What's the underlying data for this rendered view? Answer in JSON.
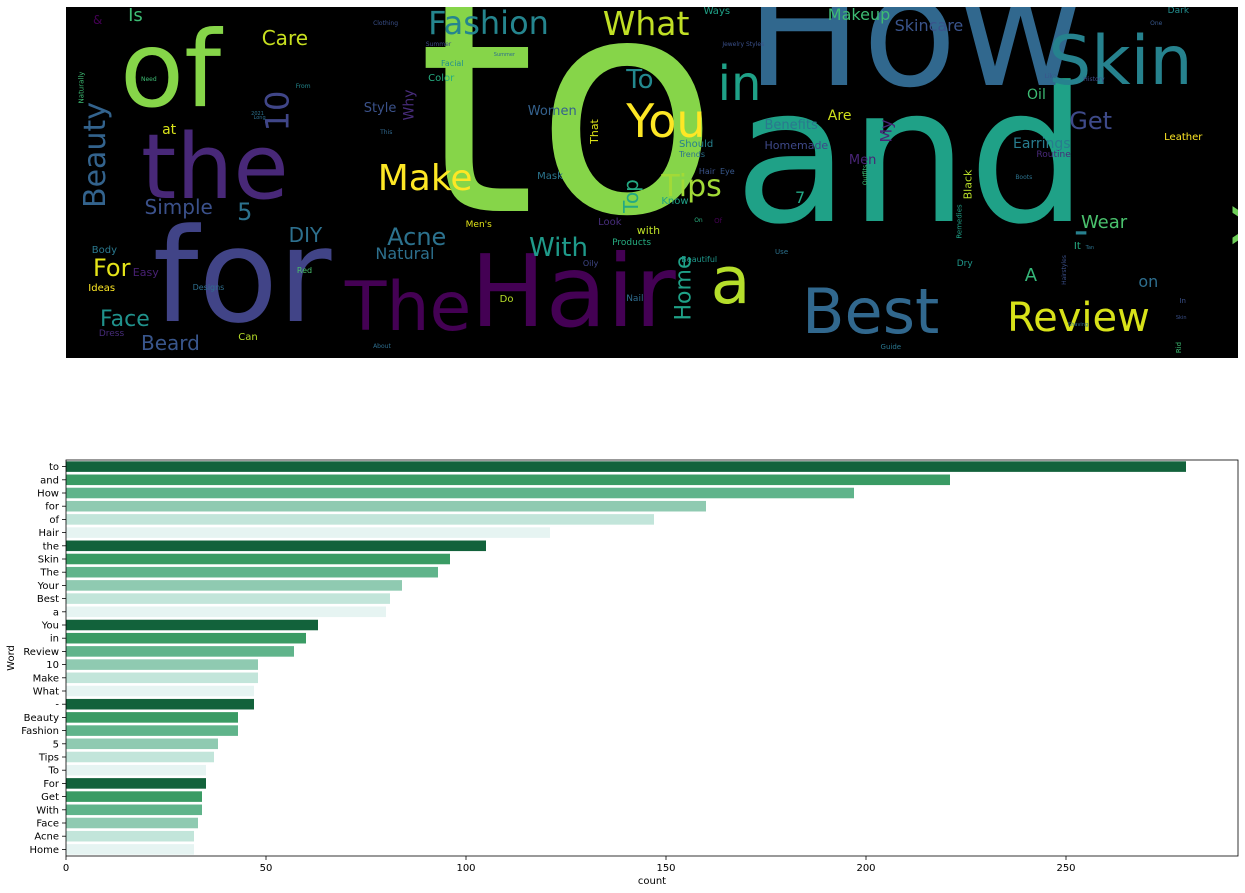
{
  "chart_data": [
    {
      "type": "wordcloud",
      "background": "#000000",
      "words": [
        {
          "text": "to",
          "color": "#86d549",
          "x": 0.3,
          "y": -0.14,
          "size": 300,
          "rot": 0
        },
        {
          "text": "and",
          "color": "#1fa187",
          "x": 0.57,
          "y": 0.16,
          "size": 188,
          "rot": 0
        },
        {
          "text": "How",
          "color": "#31688e",
          "x": 0.58,
          "y": -0.15,
          "size": 155,
          "rot": 0
        },
        {
          "text": "for",
          "color": "#414487",
          "x": 0.074,
          "y": 0.58,
          "size": 130,
          "rot": 0
        },
        {
          "text": "of",
          "color": "#86d549",
          "x": 0.046,
          "y": 0.03,
          "size": 105,
          "rot": 0
        },
        {
          "text": "Hair",
          "color": "#440154",
          "x": 0.345,
          "y": 0.67,
          "size": 100,
          "rot": 0
        },
        {
          "text": "the",
          "color": "#482878",
          "x": 0.064,
          "y": 0.33,
          "size": 90,
          "rot": 0
        },
        {
          "text": "Skin",
          "color": "#26828e",
          "x": 0.838,
          "y": 0.06,
          "size": 68,
          "rot": 0
        },
        {
          "text": "The",
          "color": "#440154",
          "x": 0.238,
          "y": 0.76,
          "size": 68,
          "rot": 0
        },
        {
          "text": "Your",
          "color": "#6ece58",
          "x": 0.96,
          "y": 0.4,
          "size": 62,
          "rot": -90
        },
        {
          "text": "Best",
          "color": "#31688e",
          "x": 0.628,
          "y": 0.78,
          "size": 62,
          "rot": 0
        },
        {
          "text": "a",
          "color": "#b5de2b",
          "x": 0.55,
          "y": 0.69,
          "size": 65,
          "rot": 0
        },
        {
          "text": "You",
          "color": "#fde725",
          "x": 0.478,
          "y": 0.26,
          "size": 46,
          "rot": 0
        },
        {
          "text": "in",
          "color": "#1fa187",
          "x": 0.556,
          "y": 0.15,
          "size": 48,
          "rot": 0
        },
        {
          "text": "Review",
          "color": "#d8e219",
          "x": 0.803,
          "y": 0.83,
          "size": 40,
          "rot": 0
        },
        {
          "text": "10",
          "color": "#404688",
          "x": 0.163,
          "y": 0.25,
          "size": 32,
          "rot": -90
        },
        {
          "text": "Make",
          "color": "#fde725",
          "x": 0.266,
          "y": 0.44,
          "size": 36,
          "rot": 0
        },
        {
          "text": "What",
          "color": "#c0df25",
          "x": 0.458,
          "y": 0.0,
          "size": 33,
          "rot": 0
        },
        {
          "text": "-",
          "color": "#27808e",
          "x": 0.86,
          "y": 0.58,
          "size": 40,
          "rot": 0
        },
        {
          "text": "Beauty",
          "color": "#33638d",
          "x": -0.02,
          "y": 0.38,
          "size": 30,
          "rot": -90
        },
        {
          "text": "Fashion",
          "color": "#25858e",
          "x": 0.309,
          "y": 0.0,
          "size": 32,
          "rot": 0
        },
        {
          "text": "5",
          "color": "#2c728e",
          "x": 0.146,
          "y": 0.55,
          "size": 24,
          "rot": 0
        },
        {
          "text": "Tips",
          "color": "#a2da37",
          "x": 0.508,
          "y": 0.47,
          "size": 30,
          "rot": 0
        },
        {
          "text": "To",
          "color": "#23888e",
          "x": 0.478,
          "y": 0.17,
          "size": 26,
          "rot": 0
        },
        {
          "text": "For",
          "color": "#e5e419",
          "x": 0.023,
          "y": 0.71,
          "size": 24,
          "rot": 0
        },
        {
          "text": "Get",
          "color": "#3e4a89",
          "x": 0.856,
          "y": 0.29,
          "size": 24,
          "rot": 0
        },
        {
          "text": "With",
          "color": "#1f9a8a",
          "x": 0.395,
          "y": 0.65,
          "size": 26,
          "rot": 0
        },
        {
          "text": "Face",
          "color": "#20928c",
          "x": 0.029,
          "y": 0.86,
          "size": 22,
          "rot": 0
        },
        {
          "text": "Acne",
          "color": "#2c728e",
          "x": 0.274,
          "y": 0.62,
          "size": 24,
          "rot": 0
        },
        {
          "text": "Home",
          "color": "#1fa187",
          "x": 0.5,
          "y": 0.77,
          "size": 22,
          "rot": -90
        },
        {
          "text": "Care",
          "color": "#c8e020",
          "x": 0.167,
          "y": 0.06,
          "size": 20,
          "rot": 0
        },
        {
          "text": "Makeup",
          "color": "#3dbc74",
          "x": 0.65,
          "y": 0.0,
          "size": 16,
          "rot": 0
        },
        {
          "text": "Skincare",
          "color": "#3a548c",
          "x": 0.707,
          "y": 0.03,
          "size": 16,
          "rot": 0
        },
        {
          "text": "Simple",
          "color": "#3b518b",
          "x": 0.067,
          "y": 0.54,
          "size": 20,
          "rot": 0
        },
        {
          "text": "DIY",
          "color": "#2d708e",
          "x": 0.19,
          "y": 0.62,
          "size": 20,
          "rot": 0
        },
        {
          "text": "Beard",
          "color": "#39568c",
          "x": 0.064,
          "y": 0.93,
          "size": 20,
          "rot": 0
        },
        {
          "text": "Natural",
          "color": "#2d708e",
          "x": 0.264,
          "y": 0.68,
          "size": 16,
          "rot": 0
        },
        {
          "text": "Top",
          "color": "#23a983",
          "x": 0.468,
          "y": 0.51,
          "size": 20,
          "rot": -90
        },
        {
          "text": "Wear",
          "color": "#4ac16d",
          "x": 0.866,
          "y": 0.59,
          "size": 18,
          "rot": 0
        },
        {
          "text": "A",
          "color": "#35b779",
          "x": 0.818,
          "y": 0.74,
          "size": 18,
          "rot": 0
        },
        {
          "text": "on",
          "color": "#2e6e8e",
          "x": 0.915,
          "y": 0.76,
          "size": 16,
          "rot": 0
        },
        {
          "text": "Is",
          "color": "#3dbc74",
          "x": 0.053,
          "y": 0.0,
          "size": 18,
          "rot": 0
        },
        {
          "text": "Oil",
          "color": "#3dbc74",
          "x": 0.82,
          "y": 0.23,
          "size": 14,
          "rot": 0
        },
        {
          "text": "Earrings",
          "color": "#287c8e",
          "x": 0.808,
          "y": 0.37,
          "size": 14,
          "rot": 0
        },
        {
          "text": "Benefits",
          "color": "#2a788e",
          "x": 0.596,
          "y": 0.32,
          "size": 13,
          "rot": 0
        },
        {
          "text": "Are",
          "color": "#d0e11c",
          "x": 0.65,
          "y": 0.29,
          "size": 14,
          "rot": 0
        },
        {
          "text": "My",
          "color": "#482677",
          "x": 0.69,
          "y": 0.33,
          "size": 16,
          "rot": -90
        },
        {
          "text": "Why",
          "color": "#472c7a",
          "x": 0.28,
          "y": 0.26,
          "size": 14,
          "rot": -90
        },
        {
          "text": "Style",
          "color": "#3b528b",
          "x": 0.254,
          "y": 0.27,
          "size": 13,
          "rot": 0
        },
        {
          "text": "Women",
          "color": "#34618d",
          "x": 0.394,
          "y": 0.28,
          "size": 13,
          "rot": 0
        },
        {
          "text": "Men",
          "color": "#482475",
          "x": 0.668,
          "y": 0.42,
          "size": 13,
          "rot": 0
        },
        {
          "text": "Homemade",
          "color": "#3e4989",
          "x": 0.596,
          "y": 0.38,
          "size": 11,
          "rot": 0
        },
        {
          "text": "Routine",
          "color": "#482979",
          "x": 0.828,
          "y": 0.41,
          "size": 9,
          "rot": 0
        },
        {
          "text": "Black",
          "color": "#b8de29",
          "x": 0.757,
          "y": 0.49,
          "size": 11,
          "rot": -90
        },
        {
          "text": "7",
          "color": "#22a785",
          "x": 0.622,
          "y": 0.52,
          "size": 16,
          "rot": 0
        },
        {
          "text": "Leather",
          "color": "#fde725",
          "x": 0.937,
          "y": 0.36,
          "size": 10,
          "rot": 0
        },
        {
          "text": "Dark",
          "color": "#228d8d",
          "x": 0.94,
          "y": 0.0,
          "size": 9,
          "rot": 0
        },
        {
          "text": "Ways",
          "color": "#1fa187",
          "x": 0.544,
          "y": 0.0,
          "size": 10,
          "rot": 0
        },
        {
          "text": "Color",
          "color": "#26ad81",
          "x": 0.309,
          "y": 0.19,
          "size": 10,
          "rot": 0
        },
        {
          "text": "Facial",
          "color": "#21908d",
          "x": 0.32,
          "y": 0.15,
          "size": 8,
          "rot": 0
        },
        {
          "text": "at",
          "color": "#d8e219",
          "x": 0.082,
          "y": 0.33,
          "size": 14,
          "rot": 0
        },
        {
          "text": "That",
          "color": "#dde318",
          "x": 0.44,
          "y": 0.34,
          "size": 11,
          "rot": -90
        },
        {
          "text": "Should",
          "color": "#27808e",
          "x": 0.523,
          "y": 0.38,
          "size": 10,
          "rot": 0
        },
        {
          "text": "Know",
          "color": "#1fa187",
          "x": 0.508,
          "y": 0.54,
          "size": 10,
          "rot": 0
        },
        {
          "text": "Trends",
          "color": "#2c728e",
          "x": 0.523,
          "y": 0.41,
          "size": 8,
          "rot": 0
        },
        {
          "text": "Eye",
          "color": "#38588c",
          "x": 0.558,
          "y": 0.46,
          "size": 8,
          "rot": 0
        },
        {
          "text": "Hair",
          "color": "#3a538b",
          "x": 0.54,
          "y": 0.46,
          "size": 8,
          "rot": 0
        },
        {
          "text": "Mask",
          "color": "#2b758e",
          "x": 0.402,
          "y": 0.47,
          "size": 10,
          "rot": 0
        },
        {
          "text": "Look",
          "color": "#472d7b",
          "x": 0.454,
          "y": 0.6,
          "size": 10,
          "rot": 0
        },
        {
          "text": "with",
          "color": "#bddf26",
          "x": 0.487,
          "y": 0.62,
          "size": 11,
          "rot": 0
        },
        {
          "text": "Products",
          "color": "#26ad81",
          "x": 0.466,
          "y": 0.66,
          "size": 9,
          "rot": 0
        },
        {
          "text": "Beautiful",
          "color": "#1f988b",
          "x": 0.525,
          "y": 0.71,
          "size": 8,
          "rot": 0
        },
        {
          "text": "Men's",
          "color": "#e2e418",
          "x": 0.341,
          "y": 0.61,
          "size": 9,
          "rot": 0
        },
        {
          "text": "Oily",
          "color": "#3f4788",
          "x": 0.441,
          "y": 0.72,
          "size": 8,
          "rot": 0
        },
        {
          "text": "Nail",
          "color": "#2f6b8e",
          "x": 0.478,
          "y": 0.82,
          "size": 9,
          "rot": 0
        },
        {
          "text": "Do",
          "color": "#b8de29",
          "x": 0.37,
          "y": 0.82,
          "size": 10,
          "rot": 0
        },
        {
          "text": "Easy",
          "color": "#482173",
          "x": 0.057,
          "y": 0.74,
          "size": 11,
          "rot": 0
        },
        {
          "text": "Body",
          "color": "#2a788e",
          "x": 0.022,
          "y": 0.68,
          "size": 10,
          "rot": 0
        },
        {
          "text": "Ideas",
          "color": "#fde725",
          "x": 0.019,
          "y": 0.79,
          "size": 10,
          "rot": 0
        },
        {
          "text": "Red",
          "color": "#4ac16d",
          "x": 0.197,
          "y": 0.74,
          "size": 8,
          "rot": 0
        },
        {
          "text": "Designs",
          "color": "#2e6e8e",
          "x": 0.108,
          "y": 0.79,
          "size": 8,
          "rot": 0
        },
        {
          "text": "Dress",
          "color": "#472c7a",
          "x": 0.028,
          "y": 0.92,
          "size": 9,
          "rot": 0
        },
        {
          "text": "Can",
          "color": "#b8de29",
          "x": 0.147,
          "y": 0.93,
          "size": 10,
          "rot": 0
        },
        {
          "text": "Dry",
          "color": "#1f988b",
          "x": 0.76,
          "y": 0.72,
          "size": 9,
          "rot": 0
        },
        {
          "text": "It",
          "color": "#25ab82",
          "x": 0.86,
          "y": 0.67,
          "size": 10,
          "rot": 0
        },
        {
          "text": "Use",
          "color": "#2c728e",
          "x": 0.605,
          "y": 0.69,
          "size": 7,
          "rot": 0
        },
        {
          "text": "Remedies",
          "color": "#1fa187",
          "x": 0.748,
          "y": 0.6,
          "size": 7,
          "rot": -90
        },
        {
          "text": "Outfits",
          "color": "#3dbc74",
          "x": 0.674,
          "y": 0.47,
          "size": 6,
          "rot": -90
        },
        {
          "text": "On",
          "color": "#29af7f",
          "x": 0.536,
          "y": 0.6,
          "size": 6,
          "rot": 0
        },
        {
          "text": "Of",
          "color": "#440154",
          "x": 0.553,
          "y": 0.6,
          "size": 7,
          "rot": 0
        },
        {
          "text": "Guide",
          "color": "#2a768e",
          "x": 0.695,
          "y": 0.96,
          "size": 7,
          "rot": 0
        },
        {
          "text": "In",
          "color": "#3b518b",
          "x": 0.95,
          "y": 0.83,
          "size": 7,
          "rot": 0
        },
        {
          "text": "Rid",
          "color": "#3dbc74",
          "x": 0.945,
          "y": 0.96,
          "size": 7,
          "rot": -90
        },
        {
          "text": "Hairstyles",
          "color": "#3b518b",
          "x": 0.84,
          "y": 0.74,
          "size": 6,
          "rot": -90
        },
        {
          "text": "Naturally",
          "color": "#3dbc74",
          "x": 0.0,
          "y": 0.22,
          "size": 7,
          "rot": -90
        },
        {
          "text": "Need",
          "color": "#3dbc74",
          "x": 0.064,
          "y": 0.2,
          "size": 6,
          "rot": 0
        },
        {
          "text": "From",
          "color": "#23888e",
          "x": 0.196,
          "y": 0.22,
          "size": 6,
          "rot": 0
        },
        {
          "text": "This",
          "color": "#31688e",
          "x": 0.268,
          "y": 0.35,
          "size": 6,
          "rot": 0
        },
        {
          "text": "Like",
          "color": "#3a548c",
          "x": 0.835,
          "y": 0.19,
          "size": 6,
          "rot": 0
        },
        {
          "text": "History",
          "color": "#3e4a89",
          "x": 0.868,
          "y": 0.2,
          "size": 6,
          "rot": 0
        },
        {
          "text": "Summer",
          "color": "#3e4a89",
          "x": 0.307,
          "y": 0.1,
          "size": 6,
          "rot": 0
        },
        {
          "text": "About",
          "color": "#2e6e8e",
          "x": 0.262,
          "y": 0.96,
          "size": 6,
          "rot": 0
        },
        {
          "text": "Clothing",
          "color": "#3b518b",
          "x": 0.262,
          "y": 0.04,
          "size": 6,
          "rot": 0
        },
        {
          "text": "Jewelry Styles",
          "color": "#3b518b",
          "x": 0.56,
          "y": 0.1,
          "size": 6,
          "rot": 0
        },
        {
          "text": "One",
          "color": "#38588c",
          "x": 0.925,
          "y": 0.04,
          "size": 6,
          "rot": 0
        },
        {
          "text": "&",
          "color": "#440154",
          "x": 0.023,
          "y": 0.02,
          "size": 12,
          "rot": 0
        },
        {
          "text": "Boots",
          "color": "#2c728e",
          "x": 0.81,
          "y": 0.48,
          "size": 6,
          "rot": 0
        },
        {
          "text": "Long",
          "color": "#2e6e8e",
          "x": 0.16,
          "y": 0.31,
          "size": 5,
          "rot": 0
        },
        {
          "text": "2021",
          "color": "#2c728e",
          "x": 0.158,
          "y": 0.3,
          "size": 5,
          "rot": 0
        },
        {
          "text": "Skin",
          "color": "#3b518b",
          "x": 0.947,
          "y": 0.88,
          "size": 5,
          "rot": 0
        },
        {
          "text": "Shaving",
          "color": "#2e6e8e",
          "x": 0.855,
          "y": 0.9,
          "size": 5,
          "rot": 0
        },
        {
          "text": "Tan",
          "color": "#2c728e",
          "x": 0.87,
          "y": 0.68,
          "size": 5,
          "rot": 0
        },
        {
          "text": "Summer",
          "color": "#2e6e8e",
          "x": 0.365,
          "y": 0.13,
          "size": 5,
          "rot": 0
        }
      ]
    },
    {
      "type": "bar",
      "orientation": "horizontal",
      "xlabel": "count",
      "ylabel": "Word",
      "xlim": [
        0,
        293
      ],
      "xticks": [
        0,
        50,
        100,
        150,
        200,
        250
      ],
      "palette": [
        "#12623b",
        "#3a9b64",
        "#60b48b",
        "#8fcab1",
        "#c2e5da",
        "#e6f4f2"
      ],
      "categories": [
        "to",
        "and",
        "How",
        "for",
        "of",
        "Hair",
        "the",
        "Skin",
        "The",
        "Your",
        "Best",
        "a",
        "You",
        "in",
        "Review",
        "10",
        "Make",
        "What",
        "-",
        "Beauty",
        "Fashion",
        "5",
        "Tips",
        "To",
        "For",
        "Get",
        "With",
        "Face",
        "Acne",
        "Home"
      ],
      "values": [
        280,
        221,
        197,
        160,
        147,
        121,
        105,
        96,
        93,
        84,
        81,
        80,
        63,
        60,
        57,
        48,
        48,
        47,
        47,
        43,
        43,
        38,
        37,
        35,
        35,
        34,
        34,
        33,
        32,
        32
      ]
    }
  ]
}
